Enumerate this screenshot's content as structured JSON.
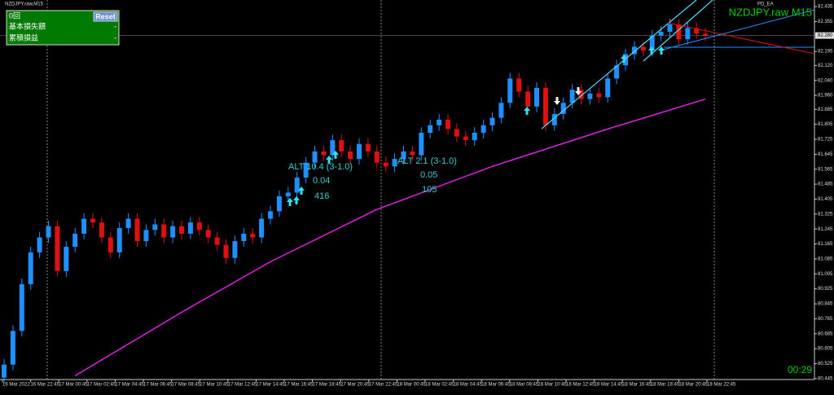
{
  "window_title": "NZDJPY.raw,M15",
  "panel": {
    "count": "0回",
    "reset": "Reset",
    "rows": [
      {
        "label": "基本損失額",
        "value": "-"
      },
      {
        "label": "累積損益",
        "value": "-"
      }
    ]
  },
  "ea_label": "PD_EA",
  "symbol_label": "NZDJPY.raw M15",
  "timer": "00:29",
  "chart_data": {
    "type": "candlestick",
    "up_color": "#1e90ff",
    "down_color": "#e01010",
    "open": [
      80.45,
      80.52,
      80.7,
      80.95,
      81.12,
      81.2,
      81.26,
      81.02,
      81.15,
      81.22,
      81.3,
      81.28,
      81.2,
      81.12,
      81.25,
      81.3,
      81.18,
      81.24,
      81.27,
      81.2,
      81.26,
      81.22,
      81.28,
      81.24,
      81.2,
      81.16,
      81.09,
      81.18,
      81.22,
      81.2,
      81.3,
      81.34,
      81.42,
      81.44,
      81.52,
      81.6,
      81.66,
      81.64,
      81.72,
      81.66,
      81.62,
      81.7,
      81.66,
      81.6,
      81.58,
      81.62,
      81.66,
      81.64,
      81.76,
      81.8,
      81.83,
      81.78,
      81.74,
      81.72,
      81.76,
      81.8,
      81.84,
      81.92,
      82.05,
      81.98,
      81.9,
      82.0,
      81.8,
      81.86,
      81.92,
      81.99,
      81.94,
      81.97,
      81.95,
      82.05,
      82.12,
      82.18,
      82.22,
      82.2,
      82.28,
      82.3,
      82.34,
      82.26,
      82.32,
      82.29
    ],
    "high": [
      80.55,
      80.73,
      80.98,
      81.15,
      81.23,
      81.29,
      81.29,
      81.18,
      81.25,
      81.33,
      81.33,
      81.31,
      81.23,
      81.28,
      81.33,
      81.33,
      81.27,
      81.3,
      81.3,
      81.29,
      81.29,
      81.31,
      81.31,
      81.27,
      81.23,
      81.19,
      81.21,
      81.25,
      81.25,
      81.33,
      81.37,
      81.45,
      81.47,
      81.55,
      81.63,
      81.69,
      81.69,
      81.75,
      81.75,
      81.69,
      81.73,
      81.73,
      81.69,
      81.63,
      81.65,
      81.69,
      81.69,
      81.79,
      81.83,
      81.86,
      81.86,
      81.81,
      81.77,
      81.79,
      81.83,
      81.87,
      81.95,
      82.08,
      82.08,
      82.01,
      82.03,
      82.03,
      81.89,
      81.95,
      82.02,
      82.02,
      82.0,
      82.0,
      82.08,
      82.15,
      82.21,
      82.25,
      82.25,
      82.31,
      82.33,
      82.37,
      82.37,
      82.35,
      82.35,
      82.32
    ],
    "low": [
      80.42,
      80.49,
      80.67,
      80.92,
      81.09,
      81.17,
      80.99,
      80.99,
      81.12,
      81.19,
      81.25,
      81.17,
      81.09,
      81.09,
      81.22,
      81.15,
      81.15,
      81.21,
      81.17,
      81.17,
      81.19,
      81.19,
      81.21,
      81.17,
      81.13,
      81.06,
      81.06,
      81.15,
      81.17,
      81.17,
      81.27,
      81.31,
      81.39,
      81.41,
      81.49,
      81.57,
      81.61,
      81.61,
      81.63,
      81.59,
      81.59,
      81.63,
      81.57,
      81.55,
      81.55,
      81.59,
      81.61,
      81.61,
      81.73,
      81.77,
      81.75,
      81.71,
      81.69,
      81.69,
      81.73,
      81.77,
      81.81,
      81.89,
      81.95,
      81.87,
      81.87,
      81.77,
      81.77,
      81.83,
      81.89,
      81.91,
      81.91,
      81.92,
      81.92,
      82.02,
      82.09,
      82.15,
      82.17,
      82.17,
      82.25,
      82.27,
      82.23,
      82.23,
      82.26,
      82.25
    ],
    "close": [
      80.52,
      80.7,
      80.95,
      81.12,
      81.2,
      81.26,
      81.02,
      81.15,
      81.22,
      81.3,
      81.28,
      81.2,
      81.12,
      81.25,
      81.3,
      81.18,
      81.24,
      81.27,
      81.2,
      81.26,
      81.22,
      81.28,
      81.24,
      81.2,
      81.16,
      81.09,
      81.18,
      81.22,
      81.2,
      81.3,
      81.34,
      81.42,
      81.44,
      81.52,
      81.6,
      81.66,
      81.64,
      81.72,
      81.66,
      81.62,
      81.7,
      81.66,
      81.6,
      81.58,
      81.62,
      81.66,
      81.64,
      81.76,
      81.8,
      81.83,
      81.78,
      81.74,
      81.72,
      81.76,
      81.8,
      81.84,
      81.92,
      82.05,
      81.98,
      81.9,
      82.0,
      81.8,
      81.86,
      81.92,
      81.99,
      81.94,
      81.97,
      81.95,
      82.05,
      82.12,
      82.18,
      82.22,
      82.2,
      82.28,
      82.3,
      82.34,
      82.26,
      82.32,
      82.29,
      82.28
    ],
    "ma": {
      "color": "#e020e0",
      "x": [
        8,
        20,
        30,
        42,
        55,
        68,
        79
      ],
      "values": [
        80.46,
        80.8,
        81.07,
        81.35,
        81.58,
        81.78,
        81.94
      ]
    },
    "ylim": [
      80.44,
      82.47
    ],
    "yticks": [
      82.435,
      82.355,
      {
        "value": 82.195,
        "label": "82.195"
      },
      {
        "value": 82.12,
        "label": "82.120"
      },
      {
        "value": 82.04,
        "label": "82.040"
      },
      {
        "value": 81.96,
        "label": "81.960"
      },
      81.885,
      81.805,
      81.725,
      81.645,
      81.565,
      81.485,
      81.405,
      81.325,
      81.245,
      81.165,
      81.085,
      81.005,
      80.925,
      80.845,
      80.765,
      80.685,
      80.605,
      80.525,
      80.445
    ],
    "current_price": {
      "value": 82.28,
      "label": "82.280"
    },
    "x_labels": [
      "16 Mar 2022",
      "16 Mar 22:45",
      "17 Mar 00:45",
      "17 Mar 02:45",
      "17 Mar 04:45",
      "17 Mar 06:45",
      "17 Mar 08:45",
      "17 Mar 10:45",
      "17 Mar 12:45",
      "17 Mar 14:45",
      "17 Mar 16:45",
      "17 Mar 18:45",
      "17 Mar 20:45",
      "17 Mar 22:45",
      "18 Mar 00:45",
      "18 Mar 02:45",
      "18 Mar 04:45",
      "18 Mar 06:45",
      "18 Mar 08:45",
      "18 Mar 10:45",
      "18 Mar 12:45",
      "18 Mar 14:45",
      "18 Mar 16:45",
      "18 Mar 18:45",
      "18 Mar 20:45",
      "18 Mar 22:45"
    ],
    "annotations": [
      "ALT 10.4 (3-1.0)",
      "0.04",
      "416",
      "ALT 2.1 (3-1.0)",
      "0.05",
      "105"
    ]
  }
}
